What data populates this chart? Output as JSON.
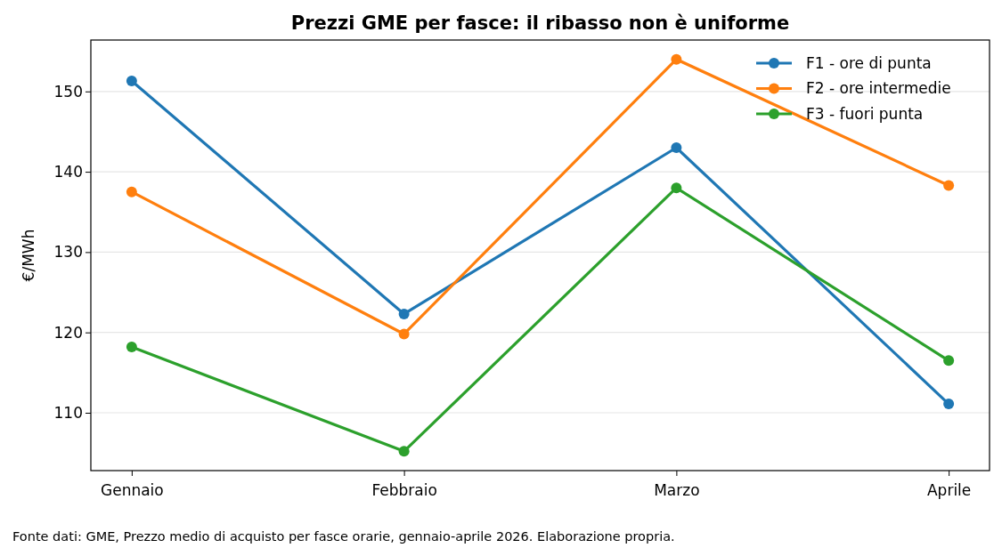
{
  "chart_data": {
    "type": "line",
    "title": "Prezzi GME per fasce: il ribasso non è uniforme",
    "ylabel": "€/MWh",
    "categories": [
      "Gennaio",
      "Febbraio",
      "Marzo",
      "Aprile"
    ],
    "series": [
      {
        "name": "F1 - ore di punta",
        "color": "#1f77b4",
        "values": [
          151.3,
          122.3,
          143.0,
          111.1
        ]
      },
      {
        "name": "F2 - ore intermedie",
        "color": "#ff7f0e",
        "values": [
          137.5,
          119.8,
          154.0,
          138.3
        ]
      },
      {
        "name": "F3 - fuori punta",
        "color": "#2ca02c",
        "values": [
          118.2,
          105.2,
          138.0,
          116.5
        ]
      }
    ],
    "ylim": [
      102.8,
      156.4
    ],
    "yticks": [
      110,
      120,
      130,
      140,
      150
    ],
    "grid": "y",
    "legend": "top right",
    "marker": "circle",
    "line_style": "solid",
    "annotations": [
      "Fonte dati: GME, Prezzo medio di acquisto per fasce orarie, gennaio-aprile 2026. Elaborazione propria."
    ]
  }
}
